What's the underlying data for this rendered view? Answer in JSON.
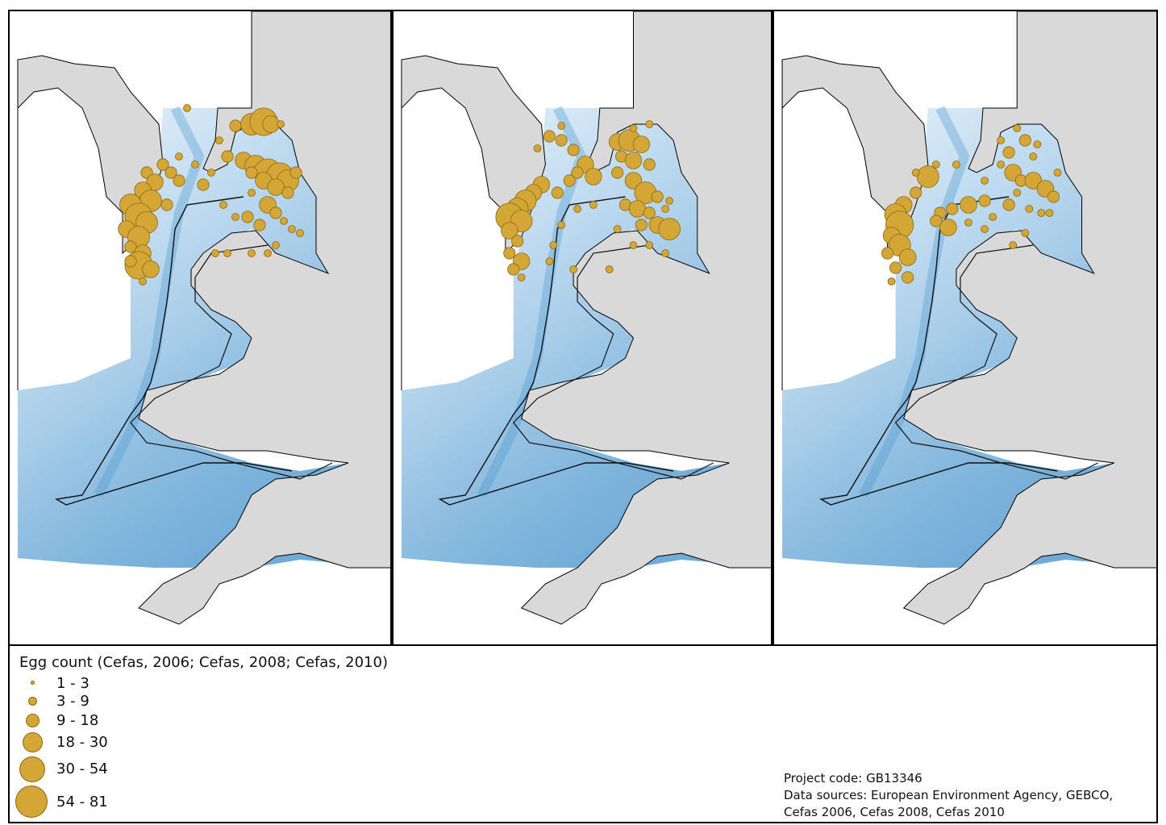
{
  "legend": {
    "title": "Egg count (Cefas, 2006; Cefas, 2008; Cefas, 2010)",
    "classes": [
      {
        "label": "1 - 3",
        "size": 1
      },
      {
        "label": "3 - 9",
        "size": 2
      },
      {
        "label": "9 - 18",
        "size": 3
      },
      {
        "label": "18 - 30",
        "size": 4
      },
      {
        "label": "30 - 54",
        "size": 5
      },
      {
        "label": "54 - 81",
        "size": 6
      }
    ]
  },
  "credits": {
    "project_code": "Project code: GB13346",
    "sources_line1": "Data sources: European Environment Agency, GEBCO,",
    "sources_line2": "Cefas 2006, Cefas 2008, Cefas 2010"
  },
  "colors": {
    "land": "#d9d9d9",
    "sea_shallow": "#eef6fc",
    "sea_deep": "#3f8fc9",
    "egg_symbol": "#d4a636",
    "egg_outline": "#8a6a18"
  }
}
